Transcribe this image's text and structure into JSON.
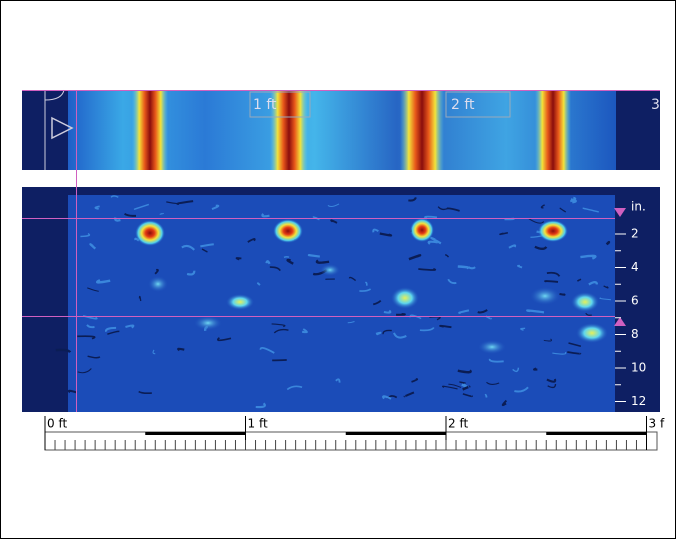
{
  "strip": {
    "labels": [
      "1 ft",
      "2 ft",
      "3"
    ]
  },
  "depth": {
    "unit": "in.",
    "ticks": [
      "2",
      "4",
      "6",
      "8",
      "10",
      "12"
    ]
  },
  "ruler": {
    "labels": [
      "0 ft",
      "1 ft",
      "2 ft",
      "3 f"
    ]
  }
}
